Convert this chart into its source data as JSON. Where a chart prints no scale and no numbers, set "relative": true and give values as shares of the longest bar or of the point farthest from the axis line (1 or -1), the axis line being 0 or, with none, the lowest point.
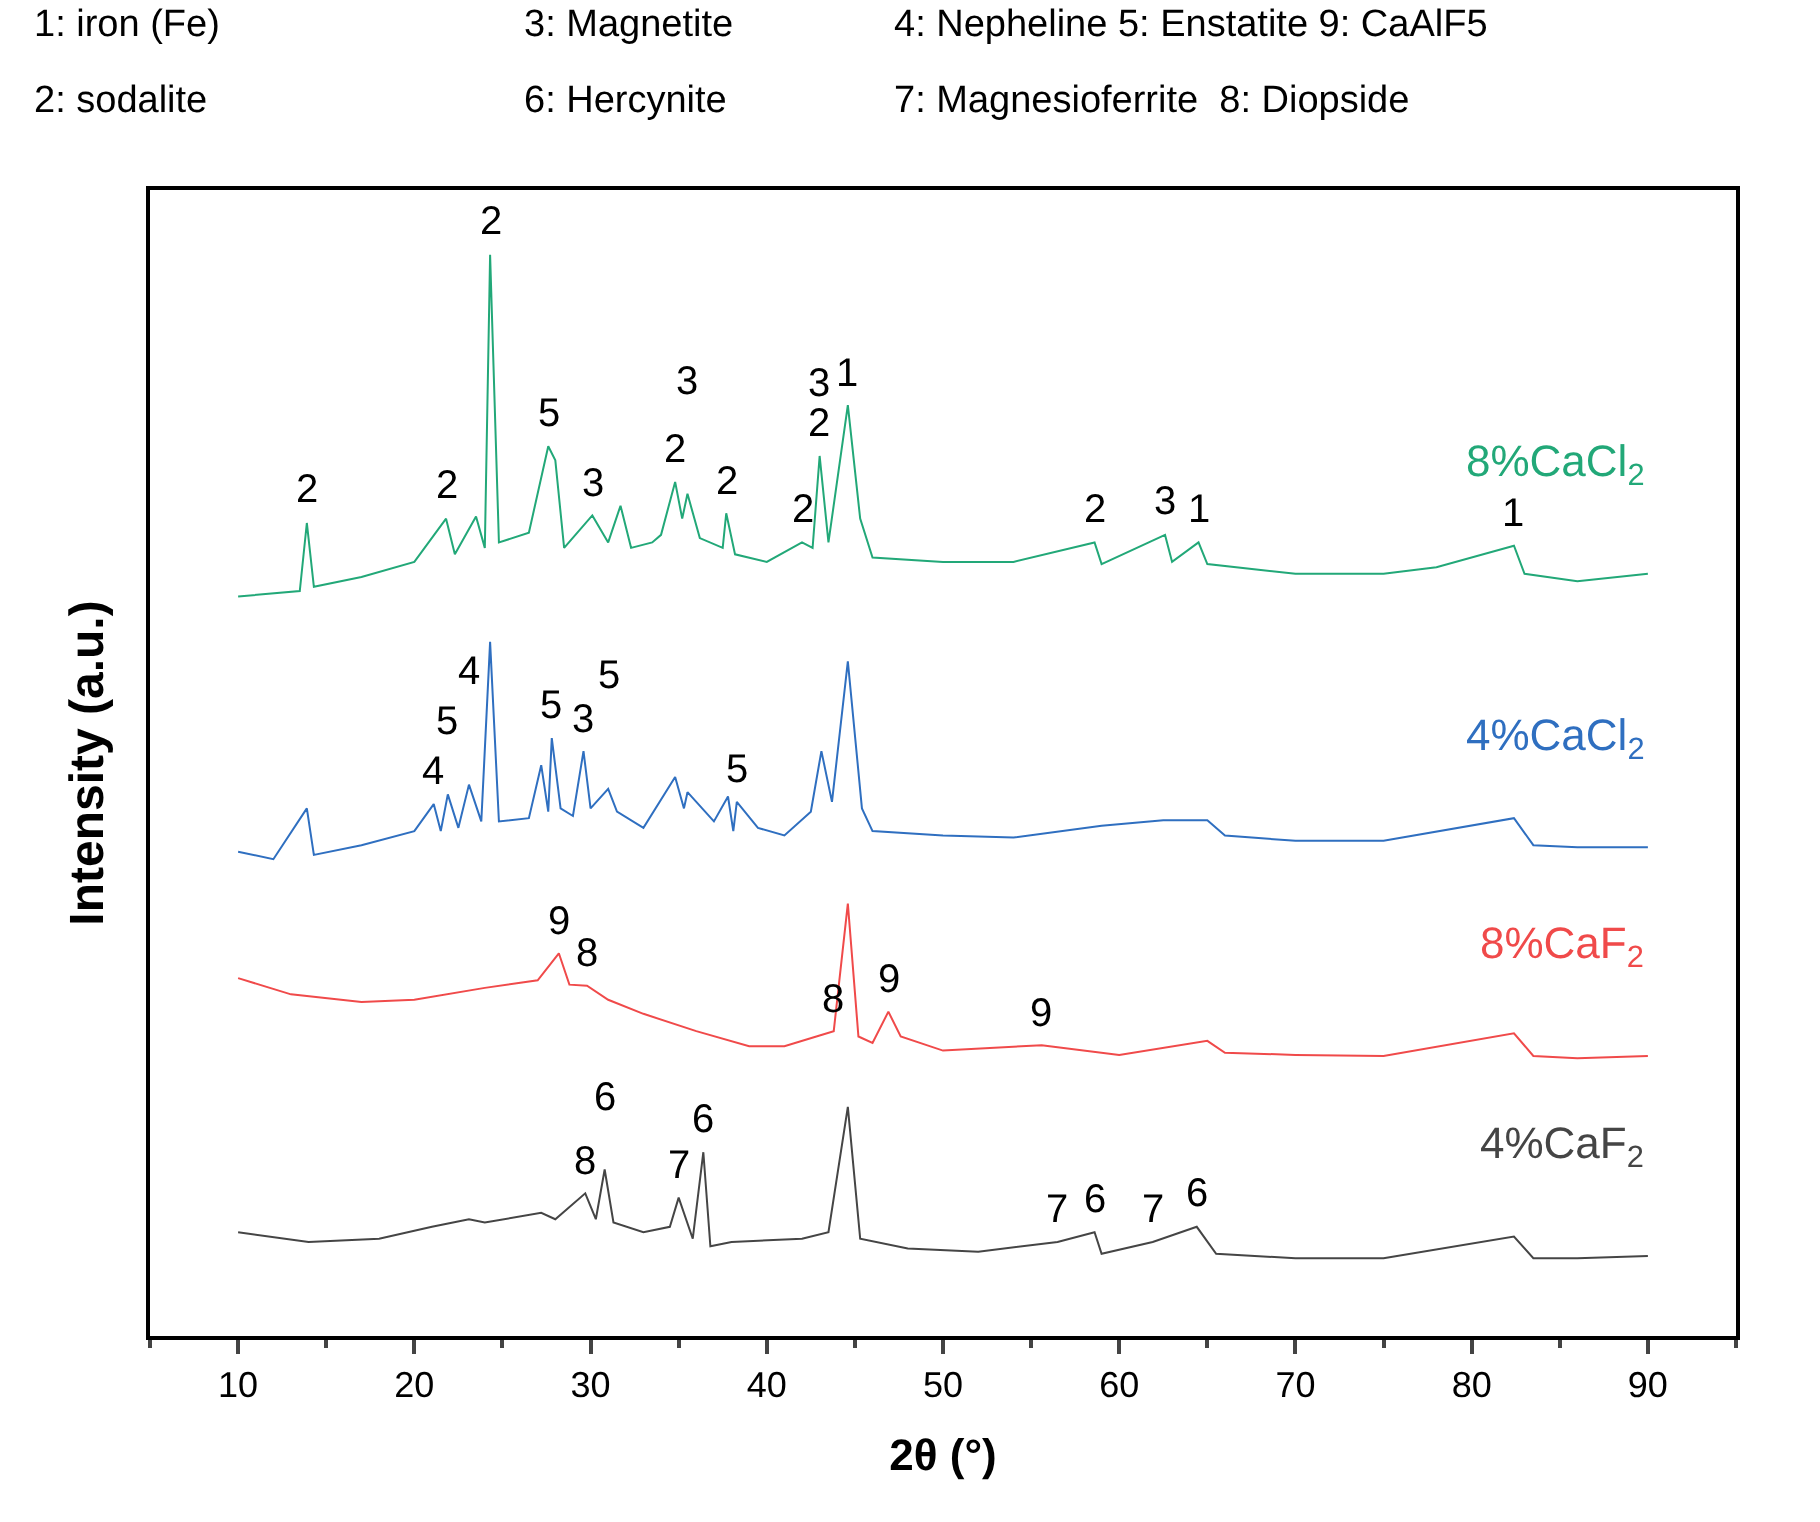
{
  "chart_data": {
    "type": "line",
    "relative": true,
    "xlabel": "2θ (°)",
    "ylabel": "Intensity (a.u.)",
    "xlim": [
      5,
      95
    ],
    "xticks": [
      10,
      20,
      30,
      40,
      50,
      60,
      70,
      80,
      90
    ],
    "legend": false,
    "marker": "none",
    "line_style": "solid",
    "series": [
      {
        "name": "8%CaCl$_{2}$",
        "color": "#22a878",
        "x": [
          10,
          13.5,
          13.9,
          14.3,
          17,
          20,
          21.8,
          22.3,
          23.5,
          24.0,
          24.3,
          24.8,
          26.5,
          27.6,
          28.0,
          28.5,
          30.1,
          31.0,
          31.7,
          32.3,
          33.5,
          34.0,
          34.8,
          35.2,
          35.5,
          36.2,
          37.5,
          37.7,
          38.2,
          40,
          42.0,
          42.6,
          43.0,
          43.5,
          44.6,
          45.3,
          46,
          50,
          54,
          58.6,
          59,
          62.6,
          63,
          64.5,
          65,
          70,
          75,
          78,
          82.4,
          83,
          86,
          90
        ],
        "values": [
          0.684,
          0.689,
          0.752,
          0.693,
          0.702,
          0.716,
          0.756,
          0.723,
          0.758,
          0.729,
          1.0,
          0.734,
          0.743,
          0.823,
          0.81,
          0.729,
          0.759,
          0.734,
          0.768,
          0.729,
          0.734,
          0.741,
          0.79,
          0.756,
          0.779,
          0.738,
          0.729,
          0.761,
          0.723,
          0.716,
          0.734,
          0.729,
          0.814,
          0.734,
          0.861,
          0.756,
          0.72,
          0.716,
          0.716,
          0.734,
          0.714,
          0.741,
          0.716,
          0.734,
          0.714,
          0.705,
          0.705,
          0.711,
          0.731,
          0.705,
          0.698,
          0.705
        ]
      },
      {
        "name": "4%CaCl$_{2}$",
        "color": "#2f6fc0",
        "x": [
          10,
          12,
          13.9,
          14.3,
          17,
          20,
          21.1,
          21.5,
          21.9,
          22.5,
          23.1,
          23.8,
          24.3,
          24.8,
          26.5,
          27.2,
          27.6,
          27.8,
          28.3,
          29.0,
          29.6,
          30.0,
          31.0,
          31.5,
          33,
          34.8,
          35.3,
          35.5,
          37,
          37.8,
          38.1,
          38.3,
          39.5,
          41,
          42.5,
          43.1,
          43.7,
          44.6,
          45.4,
          46,
          50,
          54,
          59.0,
          62.5,
          65.0,
          66,
          70,
          75,
          82.4,
          83.5,
          86,
          90
        ],
        "values": [
          0.448,
          0.441,
          0.488,
          0.445,
          0.454,
          0.467,
          0.492,
          0.467,
          0.501,
          0.47,
          0.51,
          0.476,
          0.642,
          0.476,
          0.479,
          0.528,
          0.485,
          0.553,
          0.488,
          0.481,
          0.541,
          0.488,
          0.506,
          0.485,
          0.47,
          0.517,
          0.488,
          0.503,
          0.476,
          0.499,
          0.467,
          0.494,
          0.47,
          0.463,
          0.485,
          0.541,
          0.494,
          0.624,
          0.488,
          0.467,
          0.463,
          0.461,
          0.472,
          0.477,
          0.477,
          0.463,
          0.458,
          0.458,
          0.479,
          0.454,
          0.452,
          0.452
        ]
      },
      {
        "name": "8%CaF$_{2}$",
        "color": "#f04a4a",
        "x": [
          10,
          13,
          17,
          20,
          24,
          27,
          28.2,
          28.8,
          29.8,
          31,
          33,
          36,
          39,
          41,
          43,
          43.8,
          44.6,
          45.2,
          46,
          46.9,
          47.6,
          50,
          55.6,
          60,
          65.0,
          66,
          70,
          75,
          82.4,
          83.5,
          86,
          90
        ],
        "values": [
          0.331,
          0.316,
          0.309,
          0.311,
          0.322,
          0.329,
          0.354,
          0.325,
          0.324,
          0.311,
          0.298,
          0.282,
          0.268,
          0.268,
          0.278,
          0.282,
          0.4,
          0.277,
          0.271,
          0.3,
          0.277,
          0.264,
          0.269,
          0.26,
          0.273,
          0.262,
          0.26,
          0.259,
          0.28,
          0.259,
          0.257,
          0.259
        ]
      },
      {
        "name": "4%CaF$_{2}$",
        "color": "#454545",
        "x": [
          10,
          14,
          18,
          21,
          23.1,
          24,
          27.2,
          28,
          29.7,
          30.3,
          30.8,
          31.3,
          33,
          34.5,
          35.0,
          35.8,
          36.4,
          36.8,
          38,
          42,
          43.5,
          44.6,
          45.3,
          48,
          52,
          56.5,
          58.6,
          59,
          61.9,
          64.4,
          65.5,
          70,
          75,
          82.4,
          83.5,
          86,
          90
        ],
        "values": [
          0.096,
          0.087,
          0.09,
          0.101,
          0.108,
          0.105,
          0.114,
          0.108,
          0.132,
          0.108,
          0.154,
          0.105,
          0.096,
          0.101,
          0.128,
          0.09,
          0.17,
          0.083,
          0.087,
          0.09,
          0.096,
          0.212,
          0.09,
          0.081,
          0.078,
          0.087,
          0.096,
          0.076,
          0.087,
          0.101,
          0.076,
          0.072,
          0.072,
          0.092,
          0.072,
          0.072,
          0.074
        ]
      }
    ],
    "annotations": [
      "1: iron (Fe)",
      "3: Magnetite",
      "4: Nepheline 5: Enstatite 9: CaAlF5",
      "2: sodalite",
      "6: Hercynite",
      "7: Magnesioferrite  8: Diopside",
      {
        "text": "2",
        "x": 13.9,
        "y": 0.752
      },
      {
        "text": "2",
        "x": 21.8,
        "y": 0.756
      },
      {
        "text": "2",
        "x": 24.3,
        "y": 1.0
      },
      {
        "text": "5",
        "x": 27.6,
        "y": 0.823
      },
      {
        "text": "3",
        "x": 30.1,
        "y": 0.759
      },
      {
        "text": "2",
        "x": 34.8,
        "y": 0.79
      },
      {
        "text": "3",
        "x": 35.5,
        "y": 0.779
      },
      {
        "text": "2",
        "x": 37.7,
        "y": 0.761
      },
      {
        "text": "2",
        "x": 42.0,
        "y": 0.734
      },
      {
        "text": "2",
        "x": 43.0,
        "y": 0.814
      },
      {
        "text": "3",
        "x": 43.0,
        "y": 0.814
      },
      {
        "text": "1",
        "x": 44.6,
        "y": 0.861
      },
      {
        "text": "2",
        "x": 58.6,
        "y": 0.734
      },
      {
        "text": "3",
        "x": 62.6,
        "y": 0.741
      },
      {
        "text": "1",
        "x": 64.5,
        "y": 0.734
      },
      {
        "text": "1",
        "x": 82.4,
        "y": 0.731
      },
      {
        "text": "4",
        "x": 21.1,
        "y": 0.492
      },
      {
        "text": "5",
        "x": 21.9,
        "y": 0.501
      },
      {
        "text": "4",
        "x": 23.1,
        "y": 0.51
      },
      {
        "text": "5",
        "x": 27.8,
        "y": 0.553
      },
      {
        "text": "3",
        "x": 29.6,
        "y": 0.541
      },
      {
        "text": "5",
        "x": 31.0,
        "y": 0.506
      },
      {
        "text": "5",
        "x": 38.3,
        "y": 0.494
      },
      {
        "text": "9",
        "x": 28.2,
        "y": 0.354
      },
      {
        "text": "8",
        "x": 29.8,
        "y": 0.324
      },
      {
        "text": "8",
        "x": 43.8,
        "y": 0.282
      },
      {
        "text": "9",
        "x": 46.9,
        "y": 0.3
      },
      {
        "text": "9",
        "x": 55.6,
        "y": 0.269
      },
      {
        "text": "8",
        "x": 29.7,
        "y": 0.132
      },
      {
        "text": "6",
        "x": 30.8,
        "y": 0.154
      },
      {
        "text": "7",
        "x": 35.0,
        "y": 0.128
      },
      {
        "text": "6",
        "x": 36.4,
        "y": 0.17
      },
      {
        "text": "7",
        "x": 56.5,
        "y": 0.087
      },
      {
        "text": "6",
        "x": 58.6,
        "y": 0.096
      },
      {
        "text": "7",
        "x": 61.9,
        "y": 0.087
      },
      {
        "text": "6",
        "x": 64.4,
        "y": 0.101
      }
    ]
  }
}
